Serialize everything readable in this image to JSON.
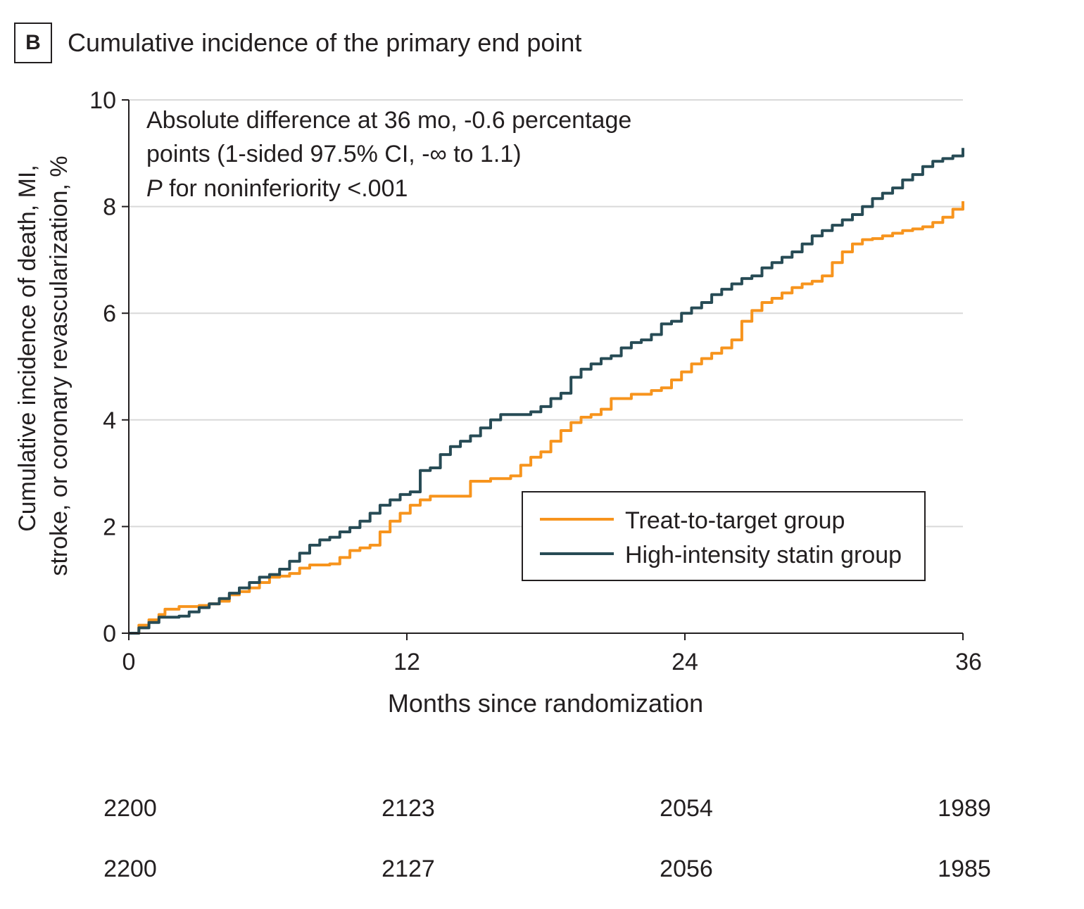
{
  "panel": {
    "label": "B",
    "title": "Cumulative incidence of the primary end point"
  },
  "chart_data": {
    "type": "line",
    "title": "Cumulative incidence of the primary end point",
    "xlabel": "Months since randomization",
    "ylabel_lines": [
      "Cumulative incidence of death, MI,",
      "stroke, or coronary revascularization, %"
    ],
    "xlim": [
      0,
      36
    ],
    "ylim": [
      0,
      10
    ],
    "xticks": [
      0,
      12,
      24,
      36
    ],
    "yticks": [
      0,
      2,
      4,
      6,
      8,
      10
    ],
    "grid": "horizontal",
    "legend_position": "center-right",
    "annotation": {
      "line1": "Absolute difference at 36 mo, -0.6 percentage",
      "line2": "points (1-sided 97.5% CI, -∞ to 1.1)",
      "line3_italic": "P",
      "line3_rest": " for noninferiority <.001"
    },
    "series": [
      {
        "name": "Treat-to-target group",
        "color": "#f7941d",
        "points": [
          [
            0,
            0
          ],
          [
            0.5,
            0.15
          ],
          [
            1,
            0.25
          ],
          [
            1.5,
            0.35
          ],
          [
            1.8,
            0.45
          ],
          [
            2.5,
            0.5
          ],
          [
            3,
            0.5
          ],
          [
            3.5,
            0.52
          ],
          [
            4,
            0.55
          ],
          [
            4.5,
            0.6
          ],
          [
            5,
            0.72
          ],
          [
            5.5,
            0.78
          ],
          [
            6,
            0.85
          ],
          [
            6.5,
            0.95
          ],
          [
            7,
            1.05
          ],
          [
            7.5,
            1.07
          ],
          [
            8,
            1.12
          ],
          [
            8.5,
            1.22
          ],
          [
            9,
            1.28
          ],
          [
            9.5,
            1.28
          ],
          [
            10,
            1.3
          ],
          [
            10.5,
            1.42
          ],
          [
            11,
            1.55
          ],
          [
            11.5,
            1.6
          ],
          [
            12,
            1.65
          ],
          [
            12.5,
            1.9
          ],
          [
            13,
            2.1
          ],
          [
            13.5,
            2.25
          ],
          [
            14,
            2.4
          ],
          [
            14.5,
            2.5
          ],
          [
            15,
            2.57
          ],
          [
            16,
            2.57
          ],
          [
            17,
            2.85
          ],
          [
            18,
            2.9
          ],
          [
            19,
            2.95
          ],
          [
            19.5,
            3.15
          ],
          [
            20,
            3.3
          ],
          [
            20.5,
            3.4
          ],
          [
            21,
            3.6
          ],
          [
            21.5,
            3.8
          ],
          [
            22,
            3.95
          ],
          [
            22.5,
            4.05
          ],
          [
            23,
            4.1
          ],
          [
            23.5,
            4.2
          ],
          [
            24,
            4.4
          ],
          [
            25,
            4.48
          ],
          [
            26,
            4.55
          ],
          [
            26.5,
            4.6
          ],
          [
            27,
            4.75
          ],
          [
            27.5,
            4.9
          ],
          [
            28,
            5.05
          ],
          [
            28.5,
            5.15
          ],
          [
            29,
            5.25
          ],
          [
            29.5,
            5.35
          ],
          [
            30,
            5.5
          ],
          [
            30.5,
            5.85
          ],
          [
            31,
            6.05
          ],
          [
            31.5,
            6.2
          ],
          [
            32,
            6.28
          ],
          [
            32.5,
            6.38
          ],
          [
            33,
            6.48
          ],
          [
            33.5,
            6.55
          ],
          [
            34,
            6.6
          ],
          [
            34.5,
            6.7
          ],
          [
            35,
            6.95
          ],
          [
            35.5,
            7.15
          ],
          [
            36,
            7.3
          ],
          [
            36.5,
            7.38
          ],
          [
            37,
            7.4
          ],
          [
            37.5,
            7.45
          ],
          [
            38,
            7.5
          ],
          [
            38.5,
            7.55
          ],
          [
            39,
            7.58
          ],
          [
            39.5,
            7.62
          ],
          [
            40,
            7.7
          ],
          [
            40.5,
            7.8
          ],
          [
            41,
            7.95
          ],
          [
            41.5,
            8.1
          ]
        ]
      },
      {
        "name": "High-intensity statin group",
        "color": "#274b55",
        "points": [
          [
            0,
            0
          ],
          [
            0.5,
            0.1
          ],
          [
            1,
            0.2
          ],
          [
            1.5,
            0.3
          ],
          [
            2,
            0.3
          ],
          [
            2.5,
            0.32
          ],
          [
            3,
            0.4
          ],
          [
            3.5,
            0.48
          ],
          [
            4,
            0.55
          ],
          [
            4.5,
            0.65
          ],
          [
            5,
            0.75
          ],
          [
            5.5,
            0.85
          ],
          [
            6,
            0.95
          ],
          [
            6.5,
            1.05
          ],
          [
            7,
            1.1
          ],
          [
            7.5,
            1.2
          ],
          [
            8,
            1.35
          ],
          [
            8.5,
            1.5
          ],
          [
            9,
            1.65
          ],
          [
            9.5,
            1.75
          ],
          [
            10,
            1.8
          ],
          [
            10.5,
            1.9
          ],
          [
            11,
            1.98
          ],
          [
            11.5,
            2.1
          ],
          [
            12,
            2.25
          ],
          [
            12.5,
            2.4
          ],
          [
            13,
            2.5
          ],
          [
            13.5,
            2.6
          ],
          [
            14,
            2.65
          ],
          [
            14.5,
            3.05
          ],
          [
            15,
            3.1
          ],
          [
            15.5,
            3.35
          ],
          [
            16,
            3.5
          ],
          [
            16.5,
            3.6
          ],
          [
            17,
            3.7
          ],
          [
            17.5,
            3.85
          ],
          [
            18,
            4.0
          ],
          [
            18.5,
            4.1
          ],
          [
            19,
            4.1
          ],
          [
            19.5,
            4.1
          ],
          [
            20,
            4.15
          ],
          [
            20.5,
            4.25
          ],
          [
            21,
            4.4
          ],
          [
            21.5,
            4.5
          ],
          [
            22,
            4.8
          ],
          [
            22.5,
            4.95
          ],
          [
            23,
            5.05
          ],
          [
            23.5,
            5.15
          ],
          [
            24,
            5.2
          ],
          [
            24.5,
            5.35
          ],
          [
            25,
            5.45
          ],
          [
            25.5,
            5.5
          ],
          [
            26,
            5.6
          ],
          [
            26.5,
            5.8
          ],
          [
            27,
            5.85
          ],
          [
            27.5,
            6.0
          ],
          [
            28,
            6.1
          ],
          [
            28.5,
            6.2
          ],
          [
            29,
            6.35
          ],
          [
            29.5,
            6.45
          ],
          [
            30,
            6.55
          ],
          [
            30.5,
            6.65
          ],
          [
            31,
            6.7
          ],
          [
            31.5,
            6.85
          ],
          [
            32,
            6.95
          ],
          [
            32.5,
            7.05
          ],
          [
            33,
            7.15
          ],
          [
            33.5,
            7.3
          ],
          [
            34,
            7.45
          ],
          [
            34.5,
            7.55
          ],
          [
            35,
            7.65
          ],
          [
            35.5,
            7.75
          ],
          [
            36,
            7.85
          ],
          [
            36.5,
            8.0
          ],
          [
            37,
            8.15
          ],
          [
            37.5,
            8.25
          ],
          [
            38,
            8.35
          ],
          [
            38.5,
            8.5
          ],
          [
            39,
            8.6
          ],
          [
            39.5,
            8.75
          ],
          [
            40,
            8.85
          ],
          [
            40.5,
            8.9
          ],
          [
            41,
            8.95
          ],
          [
            41.5,
            9.1
          ]
        ]
      }
    ],
    "legend": [
      "Treat-to-target group",
      "High-intensity statin group"
    ]
  },
  "risk_table": {
    "row1": [
      "2200",
      "2123",
      "2054",
      "1989"
    ],
    "row2": [
      "2200",
      "2127",
      "2056",
      "1985"
    ]
  }
}
